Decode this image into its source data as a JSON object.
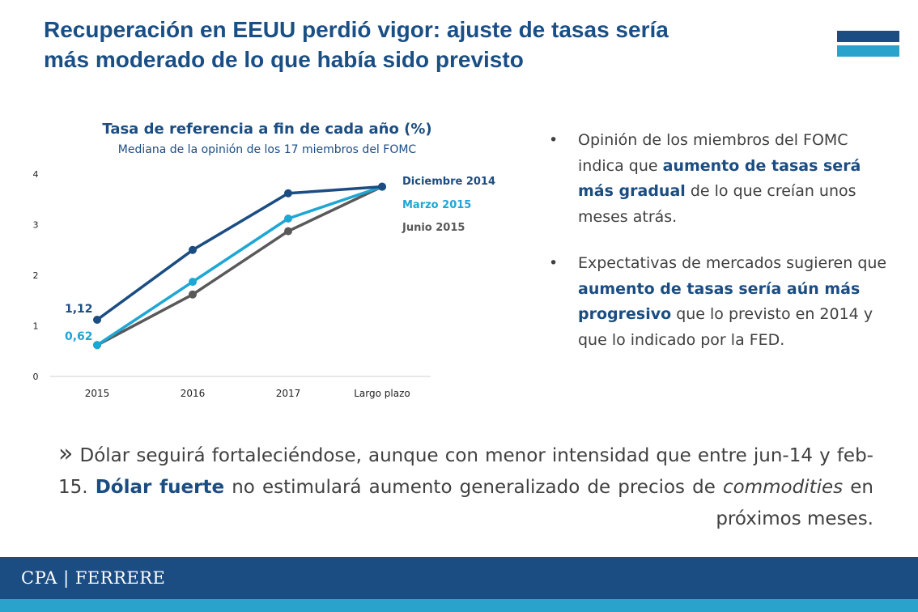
{
  "slide": {
    "title_line1": "Recuperación en EEUU perdió vigor: ajuste de tasas sería",
    "title_line2": "más moderado de lo que había sido previsto"
  },
  "colors": {
    "title": "#1a4f86",
    "dark_blue": "#1b4d82",
    "light_blue": "#1ea6d4",
    "gray": "#595959",
    "footer": "#1b4d82",
    "footer_strip": "#2aa3cc"
  },
  "chart_data": {
    "type": "line",
    "title": "Tasa de referencia a fin de cada año (%)",
    "subtitle": "Mediana de la opinión de los 17 miembros del FOMC",
    "categories": [
      "2015",
      "2016",
      "2017",
      "Largo plazo"
    ],
    "ylim": [
      0,
      4
    ],
    "yticks": [
      "0",
      "1",
      "2",
      "3",
      "4"
    ],
    "series": [
      {
        "name": "Diciembre 2014",
        "values": [
          1.12,
          2.5,
          3.62,
          3.75
        ],
        "color": "#1b4d82"
      },
      {
        "name": "Marzo 2015",
        "values": [
          0.62,
          1.87,
          3.12,
          3.75
        ],
        "color": "#1ea6d4"
      },
      {
        "name": "Junio 2015",
        "values": [
          0.62,
          1.62,
          2.87,
          3.75
        ],
        "color": "#595959"
      }
    ],
    "annotations": [
      {
        "text": "1,12",
        "series": 0
      },
      {
        "text": "0,62",
        "series": 1
      }
    ],
    "grid": false,
    "legend_placement": "right"
  },
  "bullets": [
    {
      "pre": "Opinión de los miembros del FOMC indica que ",
      "highlight": "aumento de tasas será más gradual",
      "post": " de lo que creían unos meses atrás."
    },
    {
      "pre": "Expectativas de mercados sugieren que ",
      "highlight": "aumento de tasas sería aún más progresivo",
      "post": " que lo previsto en 2014 y que lo indicado por la FED."
    }
  ],
  "bottom": {
    "marker": "»",
    "part1": " Dólar seguirá fortaleciéndose, aunque con menor intensidad que entre jun-14 y feb-15. ",
    "strong": "Dólar fuerte",
    "part2": " no estimulará aumento generalizado de precios de ",
    "italic": "commodities",
    "part3": " en próximos meses."
  },
  "footer": {
    "brand": "CPA | FERRERE"
  }
}
